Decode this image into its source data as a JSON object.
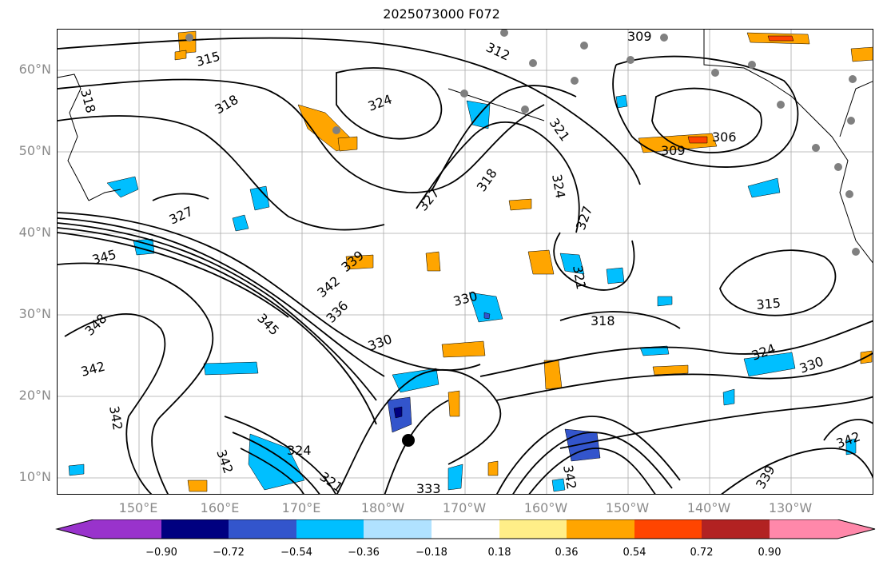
{
  "title": "2025073000 F072",
  "lat_labels": [
    "60°N",
    "50°N",
    "40°N",
    "30°N",
    "20°N",
    "10°N"
  ],
  "lon_labels": [
    "150°E",
    "160°E",
    "170°E",
    "180°W",
    "170°W",
    "160°W",
    "150°W",
    "140°W",
    "130°W"
  ],
  "contour_labels": [
    "315",
    "318",
    "318",
    "312",
    "309",
    "324",
    "321",
    "324",
    "327",
    "306",
    "309",
    "327",
    "345",
    "327",
    "321",
    "318",
    "342",
    "339",
    "336",
    "345",
    "348",
    "330",
    "318",
    "315",
    "330",
    "324",
    "330",
    "342",
    "342",
    "324",
    "321",
    "342",
    "333",
    "342",
    "339",
    "342"
  ],
  "colorbar": {
    "ticks": [
      "−0.90",
      "−0.72",
      "−0.54",
      "−0.36",
      "−0.18",
      "0.18",
      "0.36",
      "0.54",
      "0.72",
      "0.90"
    ],
    "colors": [
      "#9933cc",
      "#000080",
      "#3355cc",
      "#00bfff",
      "#b0e2ff",
      "#ffffff",
      "#ffee88",
      "#ffa500",
      "#ff4500",
      "#b22222",
      "#ff88aa"
    ]
  },
  "colors": {
    "contour": "#000000",
    "grid": "#aaaaaa",
    "coast": "#000000",
    "tick_text": "#8a8a8a",
    "marker_gray": "#808080",
    "marker_black": "#000000"
  }
}
